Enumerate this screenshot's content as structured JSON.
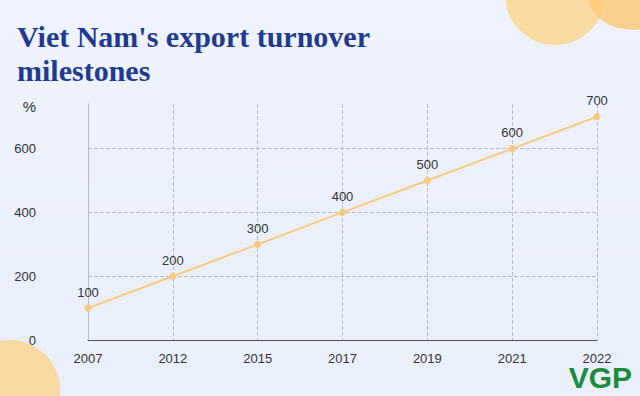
{
  "chart_data": {
    "type": "line",
    "title": "Viet Nam's export turnover milestones",
    "y_label": "%",
    "annotation": "VGP",
    "categories": [
      "2007",
      "2012",
      "2015",
      "2017",
      "2019",
      "2021",
      "2022"
    ],
    "values": [
      100,
      200,
      300,
      400,
      500,
      600,
      700
    ],
    "color": "#f9c97c",
    "marker": "circle",
    "ylim": [
      0,
      740
    ],
    "yticks": [
      0,
      200,
      400,
      600
    ],
    "grid": true,
    "data_labels": true
  }
}
